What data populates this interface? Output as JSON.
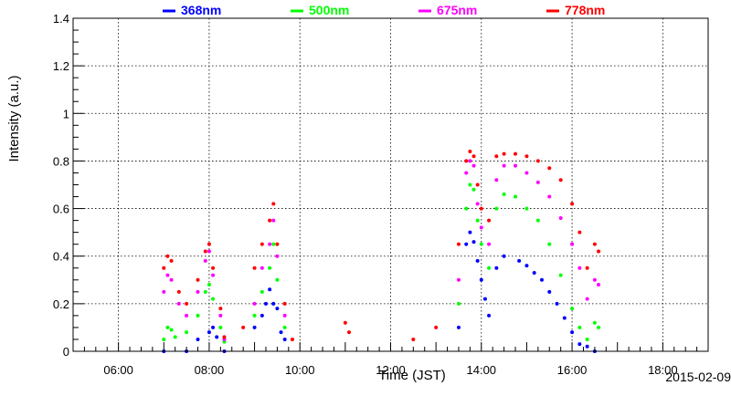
{
  "chart_data": {
    "type": "scatter",
    "xlabel": "Time (JST)",
    "ylabel": "Intensity (a.u.)",
    "date": "2015-02-09",
    "xlim": [
      "05:00",
      "19:00"
    ],
    "ylim": [
      0,
      1.4
    ],
    "x_ticks": [
      "06:00",
      "08:00",
      "10:00",
      "12:00",
      "14:00",
      "16:00",
      "18:00"
    ],
    "y_ticks": [
      "0",
      "0.2",
      "0.4",
      "0.6",
      "0.8",
      "1",
      "1.2",
      "1.4"
    ],
    "grid": true,
    "legend_position": "top",
    "series": [
      {
        "name": "368nm",
        "color": "#0000ff",
        "values": [
          [
            "07:00",
            0.0
          ],
          [
            "07:30",
            0.0
          ],
          [
            "07:45",
            0.05
          ],
          [
            "08:00",
            0.08
          ],
          [
            "08:05",
            0.1
          ],
          [
            "08:10",
            0.06
          ],
          [
            "08:20",
            0.0
          ],
          [
            "09:00",
            0.1
          ],
          [
            "09:10",
            0.15
          ],
          [
            "09:15",
            0.2
          ],
          [
            "09:20",
            0.26
          ],
          [
            "09:25",
            0.2
          ],
          [
            "09:30",
            0.18
          ],
          [
            "09:35",
            0.08
          ],
          [
            "09:40",
            0.05
          ],
          [
            "13:30",
            0.1
          ],
          [
            "13:40",
            0.45
          ],
          [
            "13:45",
            0.5
          ],
          [
            "13:50",
            0.46
          ],
          [
            "13:55",
            0.38
          ],
          [
            "14:00",
            0.3
          ],
          [
            "14:05",
            0.22
          ],
          [
            "14:10",
            0.15
          ],
          [
            "14:20",
            0.35
          ],
          [
            "14:30",
            0.4
          ],
          [
            "14:50",
            0.38
          ],
          [
            "15:00",
            0.36
          ],
          [
            "15:10",
            0.33
          ],
          [
            "15:20",
            0.3
          ],
          [
            "15:30",
            0.25
          ],
          [
            "15:40",
            0.2
          ],
          [
            "15:50",
            0.14
          ],
          [
            "16:00",
            0.08
          ],
          [
            "16:10",
            0.03
          ],
          [
            "16:20",
            0.02
          ],
          [
            "16:30",
            0.0
          ]
        ]
      },
      {
        "name": "500nm",
        "color": "#00ff00",
        "values": [
          [
            "07:00",
            0.05
          ],
          [
            "07:05",
            0.1
          ],
          [
            "07:10",
            0.09
          ],
          [
            "07:15",
            0.06
          ],
          [
            "07:30",
            0.08
          ],
          [
            "07:45",
            0.15
          ],
          [
            "07:55",
            0.25
          ],
          [
            "08:00",
            0.28
          ],
          [
            "08:05",
            0.22
          ],
          [
            "08:15",
            0.1
          ],
          [
            "08:20",
            0.04
          ],
          [
            "09:00",
            0.15
          ],
          [
            "09:10",
            0.25
          ],
          [
            "09:20",
            0.35
          ],
          [
            "09:25",
            0.45
          ],
          [
            "09:30",
            0.3
          ],
          [
            "09:40",
            0.1
          ],
          [
            "13:30",
            0.2
          ],
          [
            "13:40",
            0.6
          ],
          [
            "13:45",
            0.7
          ],
          [
            "13:50",
            0.68
          ],
          [
            "13:55",
            0.55
          ],
          [
            "14:00",
            0.45
          ],
          [
            "14:10",
            0.35
          ],
          [
            "14:20",
            0.6
          ],
          [
            "14:30",
            0.66
          ],
          [
            "14:45",
            0.65
          ],
          [
            "15:00",
            0.6
          ],
          [
            "15:15",
            0.55
          ],
          [
            "15:30",
            0.45
          ],
          [
            "15:45",
            0.32
          ],
          [
            "16:00",
            0.18
          ],
          [
            "16:10",
            0.1
          ],
          [
            "16:20",
            0.05
          ],
          [
            "16:30",
            0.12
          ],
          [
            "16:35",
            0.1
          ]
        ]
      },
      {
        "name": "675nm",
        "color": "#ff00ff",
        "values": [
          [
            "07:00",
            0.25
          ],
          [
            "07:05",
            0.32
          ],
          [
            "07:10",
            0.3
          ],
          [
            "07:20",
            0.2
          ],
          [
            "07:30",
            0.15
          ],
          [
            "07:45",
            0.25
          ],
          [
            "07:55",
            0.38
          ],
          [
            "08:00",
            0.42
          ],
          [
            "08:05",
            0.32
          ],
          [
            "08:15",
            0.15
          ],
          [
            "08:20",
            0.05
          ],
          [
            "09:00",
            0.2
          ],
          [
            "09:10",
            0.35
          ],
          [
            "09:20",
            0.45
          ],
          [
            "09:25",
            0.55
          ],
          [
            "09:30",
            0.4
          ],
          [
            "09:40",
            0.15
          ],
          [
            "13:30",
            0.3
          ],
          [
            "13:40",
            0.75
          ],
          [
            "13:45",
            0.8
          ],
          [
            "13:50",
            0.78
          ],
          [
            "13:55",
            0.62
          ],
          [
            "14:00",
            0.52
          ],
          [
            "14:10",
            0.45
          ],
          [
            "14:20",
            0.72
          ],
          [
            "14:30",
            0.78
          ],
          [
            "14:45",
            0.78
          ],
          [
            "15:00",
            0.75
          ],
          [
            "15:15",
            0.71
          ],
          [
            "15:30",
            0.65
          ],
          [
            "15:45",
            0.56
          ],
          [
            "16:00",
            0.45
          ],
          [
            "16:10",
            0.35
          ],
          [
            "16:20",
            0.22
          ],
          [
            "16:30",
            0.3
          ],
          [
            "16:35",
            0.28
          ]
        ]
      },
      {
        "name": "778nm",
        "color": "#ff0000",
        "values": [
          [
            "07:00",
            0.35
          ],
          [
            "07:05",
            0.4
          ],
          [
            "07:10",
            0.38
          ],
          [
            "07:20",
            0.25
          ],
          [
            "07:30",
            0.2
          ],
          [
            "07:45",
            0.3
          ],
          [
            "07:55",
            0.42
          ],
          [
            "08:00",
            0.45
          ],
          [
            "08:05",
            0.35
          ],
          [
            "08:15",
            0.18
          ],
          [
            "08:20",
            0.06
          ],
          [
            "08:45",
            0.1
          ],
          [
            "09:00",
            0.35
          ],
          [
            "09:10",
            0.45
          ],
          [
            "09:20",
            0.55
          ],
          [
            "09:25",
            0.62
          ],
          [
            "09:30",
            0.45
          ],
          [
            "09:40",
            0.2
          ],
          [
            "09:50",
            0.05
          ],
          [
            "11:00",
            0.12
          ],
          [
            "11:05",
            0.08
          ],
          [
            "12:30",
            0.05
          ],
          [
            "13:00",
            0.1
          ],
          [
            "13:30",
            0.45
          ],
          [
            "13:40",
            0.8
          ],
          [
            "13:45",
            0.84
          ],
          [
            "13:50",
            0.82
          ],
          [
            "13:55",
            0.7
          ],
          [
            "14:00",
            0.6
          ],
          [
            "14:10",
            0.55
          ],
          [
            "14:20",
            0.82
          ],
          [
            "14:30",
            0.83
          ],
          [
            "14:45",
            0.83
          ],
          [
            "15:00",
            0.82
          ],
          [
            "15:15",
            0.8
          ],
          [
            "15:30",
            0.77
          ],
          [
            "15:45",
            0.72
          ],
          [
            "16:00",
            0.62
          ],
          [
            "16:10",
            0.5
          ],
          [
            "16:20",
            0.35
          ],
          [
            "16:30",
            0.45
          ],
          [
            "16:35",
            0.42
          ]
        ]
      }
    ]
  }
}
